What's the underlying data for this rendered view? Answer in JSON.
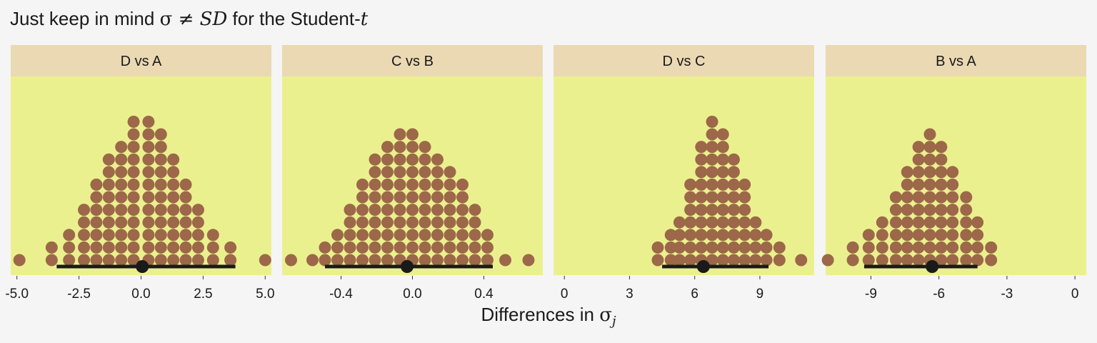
{
  "title": {
    "prefix": "Just keep in mind ",
    "sigma": "σ",
    "neq": " ≠ ",
    "sd": "SD",
    "middle": " for the Student-",
    "t": "t"
  },
  "x_axis": {
    "label": "Differences in ",
    "sigma": "σ",
    "subscript": "j"
  },
  "colors": {
    "background": "#f5f5f5",
    "panel": "#ebf08f",
    "strip": "#ebd9b3",
    "dots": "#9c6849",
    "interval": "#1a1a1a"
  },
  "chart_data": [
    {
      "type": "dotplot",
      "panel": "D vs A",
      "xlim": [
        -5.25,
        5.25
      ],
      "ticks": [
        -5,
        -2.5,
        0,
        2.5,
        5
      ],
      "tick_labels": [
        "-5.0",
        "-2.5",
        "0.0",
        "2.5",
        "5.0"
      ],
      "point_estimate": 0.05,
      "interval": [
        -3.4,
        3.8
      ],
      "dot_bins": [
        -4.9,
        -3.6,
        -2.9,
        -2.3,
        -1.8,
        -1.3,
        -0.8,
        -0.3,
        0.3,
        0.8,
        1.3,
        1.8,
        2.3,
        2.9,
        3.6,
        5.0
      ],
      "dot_counts": [
        1,
        2,
        3,
        5,
        7,
        9,
        10,
        12,
        12,
        11,
        9,
        7,
        5,
        3,
        2,
        1
      ]
    },
    {
      "type": "dotplot",
      "panel": "C vs B",
      "xlim": [
        -0.73,
        0.73
      ],
      "ticks": [
        -0.4,
        0,
        0.4
      ],
      "tick_labels": [
        "-0.4",
        "0.0",
        "0.4"
      ],
      "point_estimate": -0.03,
      "interval": [
        -0.49,
        0.45
      ],
      "dot_bins": [
        -0.68,
        -0.56,
        -0.49,
        -0.42,
        -0.35,
        -0.28,
        -0.21,
        -0.14,
        -0.07,
        0.0,
        0.07,
        0.14,
        0.21,
        0.28,
        0.35,
        0.42,
        0.52,
        0.65
      ],
      "dot_counts": [
        1,
        1,
        2,
        3,
        5,
        7,
        9,
        10,
        11,
        11,
        10,
        9,
        8,
        7,
        5,
        3,
        1,
        1
      ]
    },
    {
      "type": "dotplot",
      "panel": "D vs C",
      "xlim": [
        -0.5,
        11.5
      ],
      "ticks": [
        0,
        3,
        6,
        9
      ],
      "tick_labels": [
        "0",
        "3",
        "6",
        "9"
      ],
      "point_estimate": 6.4,
      "interval": [
        4.5,
        9.4
      ],
      "dot_bins": [
        4.3,
        4.9,
        5.3,
        5.8,
        6.3,
        6.8,
        7.3,
        7.8,
        8.3,
        8.8,
        9.3,
        9.9,
        10.9
      ],
      "dot_counts": [
        2,
        3,
        4,
        7,
        10,
        12,
        11,
        9,
        7,
        4,
        3,
        2,
        1
      ]
    },
    {
      "type": "dotplot",
      "panel": "B vs A",
      "xlim": [
        -11,
        0.5
      ],
      "ticks": [
        -9,
        -6,
        -3,
        0
      ],
      "tick_labels": [
        "-9",
        "-6",
        "-3",
        "0"
      ],
      "point_estimate": -6.3,
      "interval": [
        -9.3,
        -4.3
      ],
      "dot_bins": [
        -10.9,
        -9.8,
        -9.1,
        -8.5,
        -7.9,
        -7.4,
        -6.9,
        -6.4,
        -5.9,
        -5.4,
        -4.8,
        -4.3,
        -3.7
      ],
      "dot_counts": [
        1,
        2,
        3,
        4,
        6,
        8,
        10,
        11,
        10,
        8,
        6,
        4,
        2
      ]
    }
  ]
}
